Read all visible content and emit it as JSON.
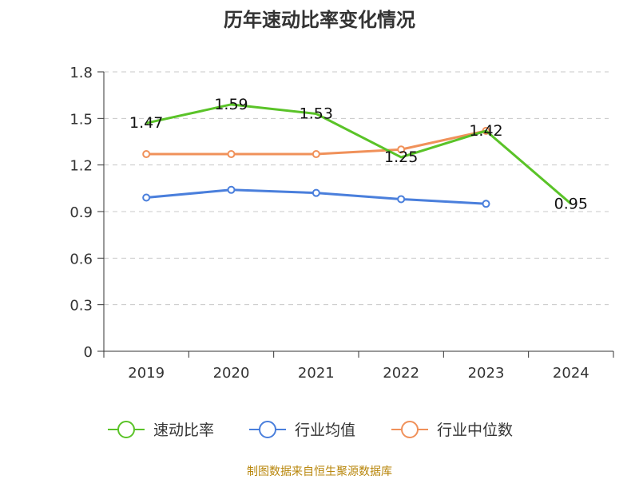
{
  "chart_data": {
    "type": "line",
    "title": "历年速动比率变化情况",
    "categories": [
      "2019",
      "2020",
      "2021",
      "2022",
      "2023",
      "2024"
    ],
    "y_ticks": [
      "0",
      "0.3",
      "0.6",
      "0.9",
      "1.2",
      "1.5",
      "1.8"
    ],
    "ylim": [
      0,
      1.8
    ],
    "grid": true,
    "legend_position": "bottom",
    "series": [
      {
        "name": "速动比率",
        "color": "#5ac328",
        "values": [
          1.47,
          1.59,
          1.53,
          1.25,
          1.42,
          0.95
        ],
        "labels": [
          "1.47",
          "1.59",
          "1.53",
          "1.25",
          "1.42",
          "0.95"
        ],
        "markers": false
      },
      {
        "name": "行业均值",
        "color": "#4a7fdc",
        "values": [
          0.99,
          1.04,
          1.02,
          0.98,
          0.95,
          null
        ],
        "markers": true
      },
      {
        "name": "行业中位数",
        "color": "#f0915a",
        "values": [
          1.27,
          1.27,
          1.27,
          1.3,
          1.42,
          null
        ],
        "markers": true
      }
    ],
    "source": "制图数据来自恒生聚源数据库"
  }
}
